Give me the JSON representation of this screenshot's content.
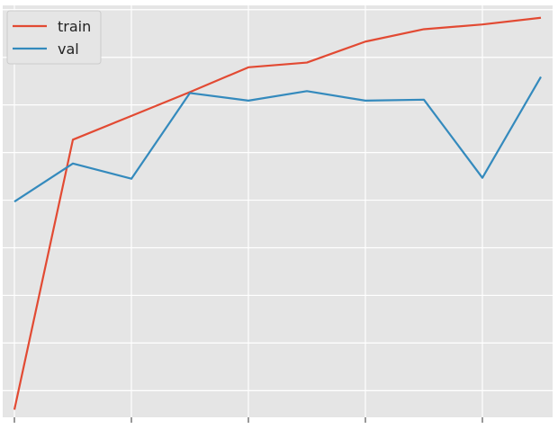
{
  "chart_data": {
    "type": "line",
    "x": [
      0,
      1,
      2,
      3,
      4,
      5,
      6,
      7,
      8,
      9
    ],
    "series": [
      {
        "name": "train",
        "color": "#e24a33",
        "values": [
          0.28,
          0.5635,
          0.5885,
          0.6135,
          0.6395,
          0.6445,
          0.6665,
          0.6795,
          0.6845,
          0.6915
        ]
      },
      {
        "name": "val",
        "color": "#348abd",
        "values": [
          0.4985,
          0.5385,
          0.5225,
          0.6125,
          0.6045,
          0.6145,
          0.6045,
          0.6055,
          0.5235,
          0.6295
        ]
      }
    ],
    "xlim": [
      -0.2,
      9.2
    ],
    "ylim": [
      0.272,
      0.7045
    ],
    "yticks": [
      0.3,
      0.35,
      0.4,
      0.45,
      0.5,
      0.55,
      0.6,
      0.65,
      0.7
    ],
    "xticks": [
      0,
      2,
      4,
      6,
      8
    ],
    "grid": true,
    "legend": "top-left",
    "background": "#e5e5e5",
    "grid_color": "#ffffff"
  }
}
